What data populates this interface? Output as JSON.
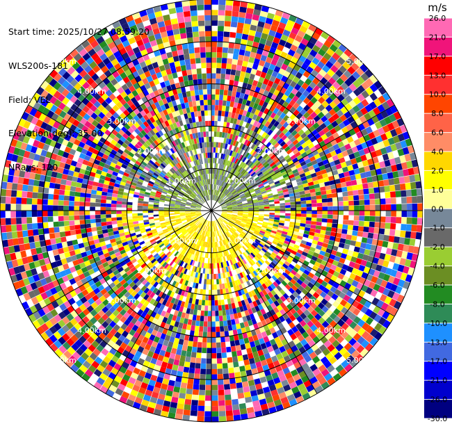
{
  "info": {
    "start_time": "Start time: 2025/10/27 08:59:20",
    "instrument": "WLS200s-181",
    "field": "Field: VEL",
    "elevation": "Elevation(deg): 35.00",
    "nrays": "NRays: 120"
  },
  "colorbar": {
    "unit": "m/s",
    "ticks": [
      "26.0",
      "21.0",
      "17.0",
      "13.0",
      "10.0",
      "8.0",
      "6.0",
      "4.0",
      "2.0",
      "1.0",
      "0.0",
      "-1.0",
      "-2.0",
      "-4.0",
      "-6.0",
      "-8.0",
      "-10.0",
      "-13.0",
      "-17.0",
      "-21.0",
      "-26.0",
      "-30.0"
    ],
    "colors": [
      "#ff69b4",
      "#f0147a",
      "#ff0000",
      "#ff3030",
      "#ff4500",
      "#ff6347",
      "#ff8c66",
      "#ffd700",
      "#ffff00",
      "#ffff99",
      "#778899",
      "#696969",
      "#9acd32",
      "#6b8e23",
      "#228b22",
      "#2e8b57",
      "#1e90ff",
      "#4169e1",
      "#0000ff",
      "#0000cd",
      "#000080",
      "#191970"
    ]
  },
  "chart_data": {
    "type": "heatmap",
    "subtype": "polar PPI radial velocity scan",
    "field": "VEL",
    "units": "m/s",
    "elevation_deg": 35.0,
    "n_rays": 120,
    "color_range": [
      -30.0,
      26.0
    ],
    "range_rings_km": [
      1.0,
      2.0,
      3.0,
      4.0,
      5.0
    ],
    "ring_labels": [
      "1.00km",
      "2.00km",
      "3.00km",
      "4.00km",
      "5.00km"
    ],
    "max_range_km": 5.0,
    "spoke_interval_deg": 30,
    "near_field_pattern": {
      "west": "positive velocities ~2 to 4 m/s (yellow)",
      "east": "near-zero to slightly negative velocities ~0 to -2 m/s (gray/olive)",
      "beyond": "noisy velocities spanning the full color range"
    }
  }
}
